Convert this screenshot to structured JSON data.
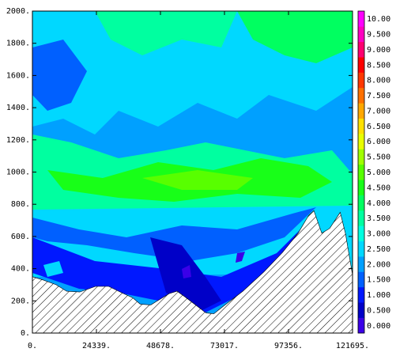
{
  "chart_data": {
    "type": "heatmap",
    "x_ticks": [
      "0.",
      "24339.",
      "48678.",
      "73017.",
      "97356.",
      "121695."
    ],
    "x_tick_values": [
      0,
      24339,
      48678,
      73017,
      97356,
      121695
    ],
    "y_ticks": [
      "0.",
      "200.",
      "400.",
      "600.",
      "800.",
      "1000.",
      "1200.",
      "1400.",
      "1600.",
      "1800.",
      "2000."
    ],
    "y_tick_values": [
      0,
      200,
      400,
      600,
      800,
      1000,
      1200,
      1400,
      1600,
      1800,
      2000
    ],
    "xlim": [
      0,
      121695
    ],
    "ylim": [
      0,
      2000
    ],
    "colorbar": {
      "labels": [
        "0.000",
        "0.500",
        "1.000",
        "1.500",
        "2.000",
        "2.500",
        "3.000",
        "3.500",
        "4.000",
        "4.500",
        "5.000",
        "5.500",
        "6.000",
        "6.500",
        "7.000",
        "7.500",
        "8.000",
        "8.500",
        "9.000",
        "9.500",
        "10.00"
      ],
      "values": [
        0,
        0.5,
        1,
        1.5,
        2,
        2.5,
        3,
        3.5,
        4,
        4.5,
        5,
        5.5,
        6,
        6.5,
        7,
        7.5,
        8,
        8.5,
        9,
        9.5,
        10
      ],
      "colors": [
        "#3b00e8",
        "#0000c8",
        "#0018ff",
        "#0060ff",
        "#00a0ff",
        "#00d8ff",
        "#00ffe0",
        "#00ffa0",
        "#00ff60",
        "#18ff18",
        "#58ff00",
        "#a0ff00",
        "#e8ff00",
        "#ffe000",
        "#ffa800",
        "#ff7000",
        "#ff3800",
        "#ff0000",
        "#ff0070",
        "#ff00c0",
        "#ff00ff"
      ]
    },
    "terrain_profile": [
      {
        "x": 0,
        "y": 350
      },
      {
        "x": 4000,
        "y": 330
      },
      {
        "x": 9000,
        "y": 300
      },
      {
        "x": 13000,
        "y": 260
      },
      {
        "x": 18000,
        "y": 255
      },
      {
        "x": 24000,
        "y": 290
      },
      {
        "x": 29000,
        "y": 290
      },
      {
        "x": 34000,
        "y": 250
      },
      {
        "x": 38000,
        "y": 220
      },
      {
        "x": 41000,
        "y": 180
      },
      {
        "x": 45000,
        "y": 175
      },
      {
        "x": 49000,
        "y": 215
      },
      {
        "x": 52000,
        "y": 245
      },
      {
        "x": 55000,
        "y": 260
      },
      {
        "x": 58000,
        "y": 225
      },
      {
        "x": 62000,
        "y": 175
      },
      {
        "x": 66000,
        "y": 125
      },
      {
        "x": 69000,
        "y": 120
      },
      {
        "x": 74000,
        "y": 185
      },
      {
        "x": 80000,
        "y": 260
      },
      {
        "x": 88000,
        "y": 380
      },
      {
        "x": 95000,
        "y": 500
      },
      {
        "x": 101000,
        "y": 620
      },
      {
        "x": 105000,
        "y": 730
      },
      {
        "x": 107000,
        "y": 760
      },
      {
        "x": 110000,
        "y": 620
      },
      {
        "x": 113000,
        "y": 650
      },
      {
        "x": 117000,
        "y": 750
      },
      {
        "x": 119000,
        "y": 620
      },
      {
        "x": 121695,
        "y": 360
      }
    ]
  }
}
